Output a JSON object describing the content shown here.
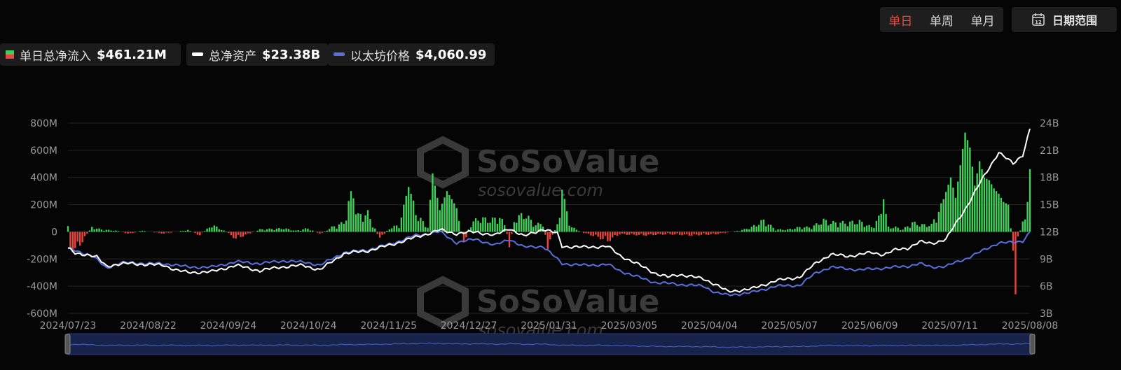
{
  "toolbar": {
    "periods": [
      "单日",
      "单周",
      "单月"
    ],
    "active_period": "单日",
    "date_range_label": "日期范围",
    "calendar_day": "12"
  },
  "legend": {
    "inflow": {
      "label": "单日总净流入",
      "value": "$461.21M",
      "color_pos": "#3fcf5a",
      "color_neg": "#e8453c"
    },
    "assets": {
      "label": "总净资产",
      "value": "$23.38B",
      "color": "#ffffff"
    },
    "price": {
      "label": "以太坊价格",
      "value": "$4,060.99",
      "color": "#5a6fe0"
    }
  },
  "watermark": {
    "brand": "SoSoValue",
    "url": "sosovalue.com"
  },
  "chart_data": {
    "type": "bar",
    "x_ticks": [
      "2024/07/23",
      "2024/08/22",
      "2024/09/24",
      "2024/10/24",
      "2024/11/25",
      "2024/12/27",
      "2025/01/31",
      "2025/03/05",
      "2025/04/04",
      "2025/05/07",
      "2025/06/09",
      "2025/07/11",
      "2025/08/08"
    ],
    "y_left_ticks": [
      "800M",
      "600M",
      "400M",
      "200M",
      "0",
      "-200M",
      "-400M",
      "-600M"
    ],
    "y_left_range": [
      -600,
      800
    ],
    "y_right_ticks": [
      "24B",
      "21B",
      "18B",
      "15B",
      "12B",
      "9B",
      "6B",
      "3B"
    ],
    "y_right_range": [
      3,
      24
    ],
    "grid": true,
    "inflow_keyframes_millions": [
      [
        0,
        106
      ],
      [
        1,
        -140
      ],
      [
        3,
        -160
      ],
      [
        5,
        -110
      ],
      [
        7,
        -50
      ],
      [
        10,
        40
      ],
      [
        14,
        20
      ],
      [
        20,
        10
      ],
      [
        26,
        -20
      ],
      [
        30,
        10
      ],
      [
        40,
        -15
      ],
      [
        50,
        15
      ],
      [
        55,
        -30
      ],
      [
        60,
        60
      ],
      [
        65,
        10
      ],
      [
        70,
        -60
      ],
      [
        80,
        20
      ],
      [
        90,
        30
      ],
      [
        95,
        10
      ],
      [
        100,
        30
      ],
      [
        105,
        -20
      ],
      [
        110,
        40
      ],
      [
        115,
        80
      ],
      [
        118,
        300
      ],
      [
        121,
        140
      ],
      [
        125,
        160
      ],
      [
        130,
        -60
      ],
      [
        134,
        30
      ],
      [
        138,
        60
      ],
      [
        140,
        200
      ],
      [
        142,
        330
      ],
      [
        146,
        130
      ],
      [
        150,
        40
      ],
      [
        152,
        430
      ],
      [
        155,
        160
      ],
      [
        158,
        300
      ],
      [
        162,
        180
      ],
      [
        165,
        -100
      ],
      [
        168,
        80
      ],
      [
        172,
        120
      ],
      [
        176,
        100
      ],
      [
        180,
        130
      ],
      [
        182,
        60
      ],
      [
        184,
        -130
      ],
      [
        186,
        100
      ],
      [
        190,
        160
      ],
      [
        195,
        60
      ],
      [
        198,
        80
      ],
      [
        200,
        -130
      ],
      [
        204,
        60
      ],
      [
        206,
        310
      ],
      [
        210,
        40
      ],
      [
        215,
        -10
      ],
      [
        220,
        -40
      ],
      [
        225,
        -80
      ],
      [
        230,
        -20
      ],
      [
        240,
        -30
      ],
      [
        250,
        -20
      ],
      [
        260,
        -30
      ],
      [
        270,
        -20
      ],
      [
        280,
        10
      ],
      [
        285,
        40
      ],
      [
        290,
        100
      ],
      [
        295,
        20
      ],
      [
        300,
        20
      ],
      [
        305,
        40
      ],
      [
        310,
        40
      ],
      [
        315,
        100
      ],
      [
        318,
        80
      ],
      [
        320,
        80
      ],
      [
        325,
        80
      ],
      [
        330,
        90
      ],
      [
        335,
        40
      ],
      [
        338,
        120
      ],
      [
        340,
        240
      ],
      [
        342,
        40
      ],
      [
        345,
        40
      ],
      [
        348,
        20
      ],
      [
        352,
        80
      ],
      [
        356,
        60
      ],
      [
        360,
        60
      ],
      [
        362,
        150
      ],
      [
        365,
        240
      ],
      [
        368,
        400
      ],
      [
        370,
        250
      ],
      [
        374,
        730
      ],
      [
        376,
        620
      ],
      [
        378,
        340
      ],
      [
        380,
        520
      ],
      [
        382,
        400
      ],
      [
        384,
        380
      ],
      [
        386,
        320
      ],
      [
        388,
        280
      ],
      [
        390,
        220
      ],
      [
        392,
        200
      ],
      [
        394,
        -140
      ],
      [
        395,
        -460
      ],
      [
        396,
        -60
      ],
      [
        398,
        80
      ],
      [
        400,
        220
      ],
      [
        401,
        461
      ]
    ],
    "assets_keyframes_billions": [
      [
        0,
        10.2
      ],
      [
        3,
        9.6
      ],
      [
        8,
        9.5
      ],
      [
        12,
        9.2
      ],
      [
        16,
        8.2
      ],
      [
        20,
        8.4
      ],
      [
        25,
        8.5
      ],
      [
        40,
        8.3
      ],
      [
        45,
        7.8
      ],
      [
        50,
        7.5
      ],
      [
        60,
        7.6
      ],
      [
        70,
        8.3
      ],
      [
        80,
        7.7
      ],
      [
        88,
        8.1
      ],
      [
        98,
        8.3
      ],
      [
        105,
        7.8
      ],
      [
        115,
        9.6
      ],
      [
        125,
        9.9
      ],
      [
        135,
        10.6
      ],
      [
        145,
        11.4
      ],
      [
        155,
        12.2
      ],
      [
        162,
        11.8
      ],
      [
        170,
        12.0
      ],
      [
        178,
        11.6
      ],
      [
        184,
        12.4
      ],
      [
        190,
        11.5
      ],
      [
        198,
        12.3
      ],
      [
        204,
        11.8
      ],
      [
        206,
        10.4
      ],
      [
        215,
        10.3
      ],
      [
        225,
        10.4
      ],
      [
        230,
        9.4
      ],
      [
        240,
        8.1
      ],
      [
        245,
        7.4
      ],
      [
        250,
        7.0
      ],
      [
        255,
        7.3
      ],
      [
        265,
        6.8
      ],
      [
        270,
        6.2
      ],
      [
        275,
        5.4
      ],
      [
        285,
        5.7
      ],
      [
        295,
        6.6
      ],
      [
        305,
        7.0
      ],
      [
        312,
        8.6
      ],
      [
        318,
        9.5
      ],
      [
        325,
        9.3
      ],
      [
        335,
        9.7
      ],
      [
        340,
        9.5
      ],
      [
        345,
        10.0
      ],
      [
        350,
        10.2
      ],
      [
        355,
        10.9
      ],
      [
        360,
        10.7
      ],
      [
        366,
        11.2
      ],
      [
        374,
        14.5
      ],
      [
        380,
        17.3
      ],
      [
        388,
        20.8
      ],
      [
        394,
        19.5
      ],
      [
        398,
        20.5
      ],
      [
        401,
        23.38
      ]
    ],
    "price_keyframes_billions_axis": [
      [
        0,
        10.2
      ],
      [
        3,
        9.9
      ],
      [
        10,
        9.4
      ],
      [
        16,
        8.0
      ],
      [
        22,
        8.6
      ],
      [
        35,
        8.5
      ],
      [
        44,
        8.4
      ],
      [
        50,
        8.1
      ],
      [
        60,
        8.1
      ],
      [
        70,
        8.7
      ],
      [
        80,
        8.5
      ],
      [
        90,
        8.8
      ],
      [
        100,
        8.6
      ],
      [
        105,
        8.3
      ],
      [
        115,
        9.7
      ],
      [
        125,
        10.0
      ],
      [
        135,
        10.7
      ],
      [
        145,
        11.6
      ],
      [
        155,
        12.0
      ],
      [
        162,
        10.8
      ],
      [
        170,
        11.2
      ],
      [
        178,
        10.5
      ],
      [
        184,
        11.2
      ],
      [
        190,
        10.3
      ],
      [
        198,
        10.4
      ],
      [
        206,
        8.5
      ],
      [
        215,
        8.3
      ],
      [
        225,
        8.4
      ],
      [
        230,
        7.7
      ],
      [
        240,
        6.8
      ],
      [
        245,
        6.4
      ],
      [
        255,
        6.2
      ],
      [
        265,
        6.0
      ],
      [
        270,
        5.3
      ],
      [
        275,
        5.0
      ],
      [
        285,
        5.3
      ],
      [
        295,
        6.0
      ],
      [
        305,
        6.1
      ],
      [
        312,
        7.5
      ],
      [
        318,
        8.1
      ],
      [
        330,
        7.8
      ],
      [
        340,
        8.0
      ],
      [
        350,
        8.2
      ],
      [
        355,
        8.5
      ],
      [
        360,
        8.1
      ],
      [
        366,
        8.2
      ],
      [
        374,
        9.0
      ],
      [
        382,
        10.0
      ],
      [
        388,
        10.8
      ],
      [
        394,
        10.8
      ],
      [
        398,
        11.0
      ],
      [
        401,
        12.0
      ]
    ],
    "series": [
      {
        "name": "单日总净流入",
        "type": "bar"
      },
      {
        "name": "总净资产",
        "type": "line"
      },
      {
        "name": "以太坊价格",
        "type": "line"
      }
    ]
  }
}
